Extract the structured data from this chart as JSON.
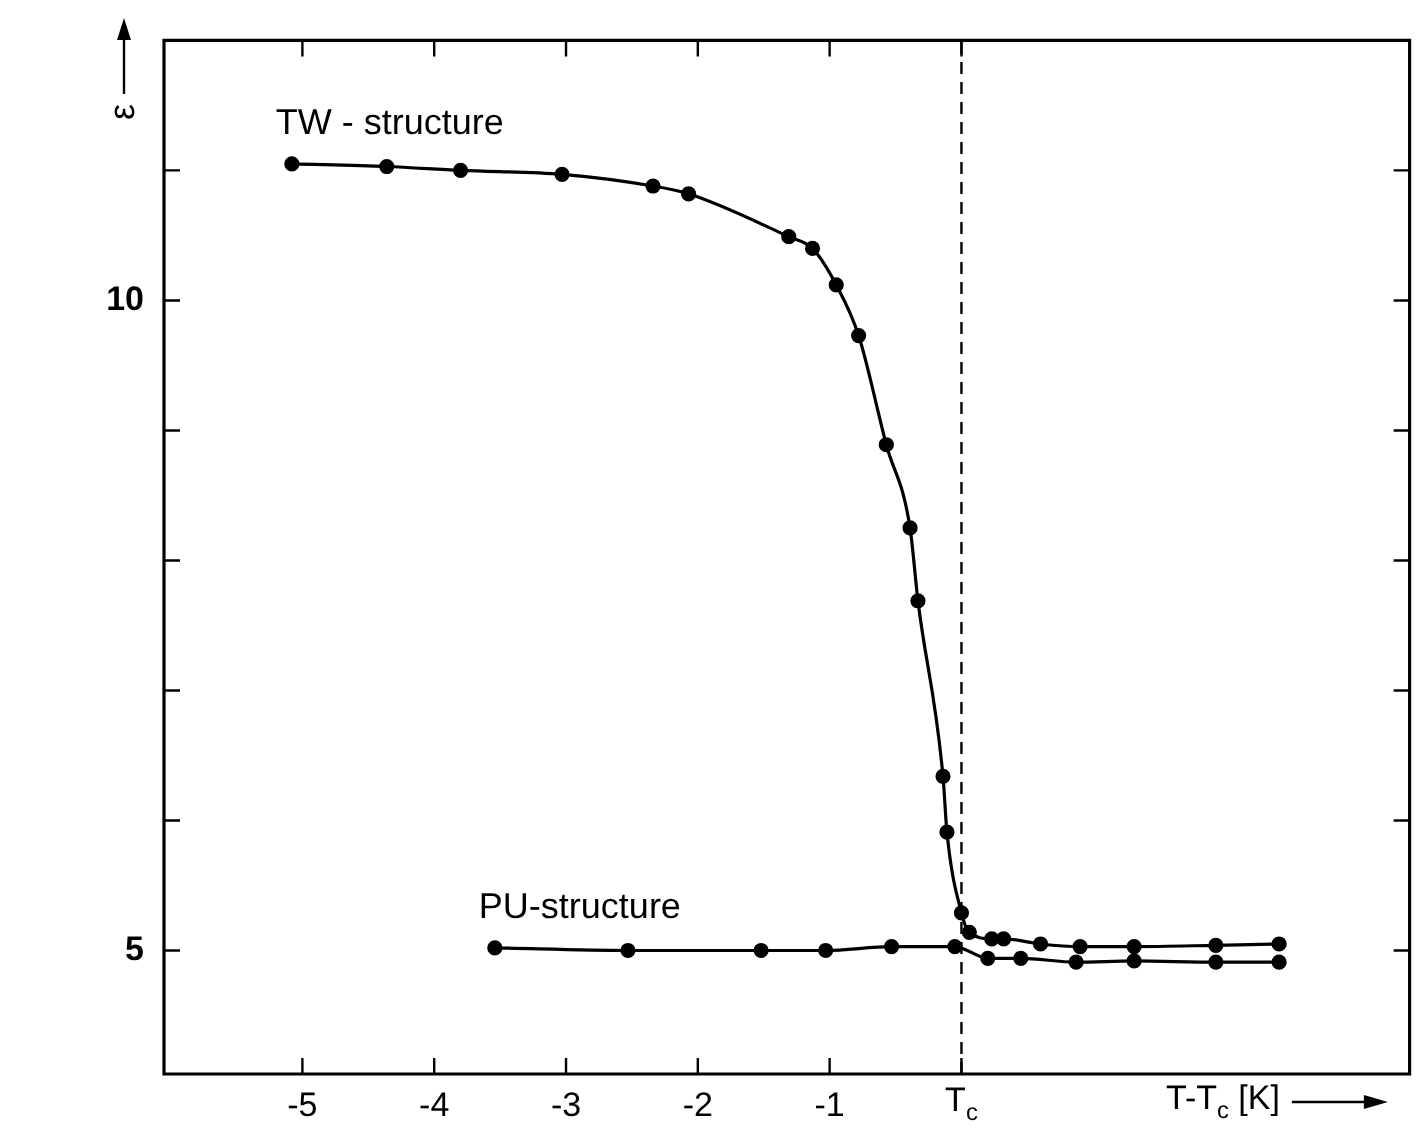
{
  "chart_data": {
    "type": "line",
    "xlabel": "T-T$_{c}$ [K]",
    "ylabel": "ε",
    "xlim": [
      -6.05,
      3.4
    ],
    "ylim": [
      4.05,
      12
    ],
    "xticks": [
      -5,
      -4,
      -3,
      -2,
      -1,
      {
        "value": 0,
        "label": "T$_{c}$"
      }
    ],
    "yticks": [
      5,
      {
        "value": 6,
        "label": null
      },
      {
        "value": 7,
        "label": null
      },
      {
        "value": 8,
        "label": null
      },
      {
        "value": 9,
        "label": null
      },
      10,
      {
        "value": 11,
        "label": null
      }
    ],
    "grid": false,
    "legend": false,
    "marker": "circle",
    "ref_lines": [
      {
        "axis": "x",
        "value": 0,
        "line_style": "dashed",
        "color": "#000000"
      }
    ],
    "series": [
      {
        "name": "TW - structure",
        "color": "#000000",
        "x": [
          -5.08,
          -4.36,
          -3.8,
          -3.03,
          -2.34,
          -2.07,
          -1.31,
          -1.13,
          -0.95,
          -0.78,
          -0.57,
          -0.39,
          -0.33,
          -0.14,
          -0.11,
          0.0,
          0.06,
          0.23,
          0.32,
          0.6,
          0.9,
          1.31,
          1.93,
          2.41
        ],
        "values": [
          11.05,
          11.03,
          11.0,
          10.97,
          10.88,
          10.82,
          10.49,
          10.4,
          10.12,
          9.73,
          8.89,
          8.25,
          7.69,
          6.34,
          5.91,
          5.29,
          5.14,
          5.09,
          5.09,
          5.05,
          5.03,
          5.03,
          5.04,
          5.05
        ]
      },
      {
        "name": "PU-structure",
        "color": "#000000",
        "x": [
          -3.54,
          -2.53,
          -1.52,
          -1.03,
          -0.53,
          -0.05,
          0.2,
          0.45,
          0.87,
          1.31,
          1.93,
          2.41
        ],
        "values": [
          5.02,
          5.0,
          5.0,
          5.0,
          5.03,
          5.03,
          4.94,
          4.94,
          4.91,
          4.92,
          4.91,
          4.91
        ]
      }
    ]
  }
}
